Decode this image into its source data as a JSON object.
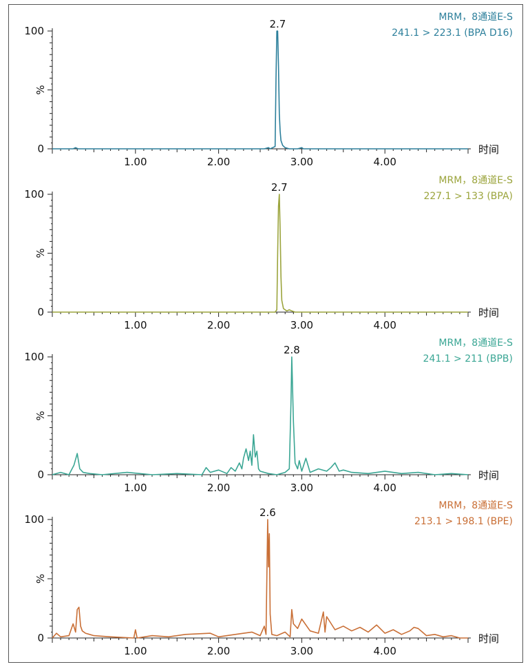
{
  "chart_data": [
    {
      "type": "line",
      "legend": [
        "MRM，8通道E-S",
        "241.1 > 223.1 (BPA D16)"
      ],
      "color": "#2c7f9b",
      "xlabel": "时间",
      "ylabel": "%",
      "xlim": [
        0,
        5
      ],
      "ylim": [
        0,
        100
      ],
      "x_ticks": [
        "1.00",
        "2.00",
        "3.00",
        "4.00"
      ],
      "y_ticks": [
        "0",
        "100"
      ],
      "peak": {
        "x": 2.71,
        "label": "2.7"
      },
      "series": [
        {
          "x": [
            0.0,
            0.25,
            0.28,
            0.31,
            2.55,
            2.6,
            2.62,
            2.65,
            2.68,
            2.69,
            2.7,
            2.71,
            2.72,
            2.73,
            2.74,
            2.75,
            2.77,
            2.8,
            2.85,
            2.95,
            3.0,
            3.02,
            3.1,
            5.0
          ],
          "y": [
            0,
            0,
            1,
            0,
            0,
            1,
            0,
            1,
            2,
            60,
            100,
            100,
            70,
            30,
            15,
            7,
            3,
            1,
            0,
            0,
            1,
            0,
            0,
            0
          ]
        }
      ]
    },
    {
      "type": "line",
      "legend": [
        "MRM，8通道E-S",
        "227.1 > 133 (BPA)"
      ],
      "color": "#9ba43c",
      "xlabel": "时间",
      "ylabel": "%",
      "xlim": [
        0,
        5
      ],
      "ylim": [
        0,
        100
      ],
      "x_ticks": [
        "1.00",
        "2.00",
        "3.00",
        "4.00"
      ],
      "y_ticks": [
        "0",
        "100"
      ],
      "peak": {
        "x": 2.73,
        "label": "2.7"
      },
      "series": [
        {
          "x": [
            0.0,
            2.6,
            2.68,
            2.7,
            2.71,
            2.72,
            2.73,
            2.74,
            2.75,
            2.76,
            2.78,
            2.82,
            2.85,
            2.88,
            2.92,
            5.0
          ],
          "y": [
            0,
            0,
            0,
            2,
            50,
            90,
            100,
            70,
            30,
            10,
            3,
            1,
            2,
            1,
            0,
            0
          ]
        }
      ]
    },
    {
      "type": "line",
      "legend": [
        "MRM，8通道E-S",
        "241.1 > 211 (BPB)"
      ],
      "color": "#3aa694",
      "xlabel": "时间",
      "ylabel": "%",
      "xlim": [
        0,
        5
      ],
      "ylim": [
        0,
        100
      ],
      "x_ticks": [
        "1.00",
        "2.00",
        "3.00",
        "4.00"
      ],
      "y_ticks": [
        "0",
        "100"
      ],
      "peak": {
        "x": 2.88,
        "label": "2.8"
      },
      "series": [
        {
          "x": [
            0.0,
            0.1,
            0.2,
            0.26,
            0.3,
            0.33,
            0.37,
            0.45,
            0.6,
            0.9,
            1.2,
            1.5,
            1.8,
            1.85,
            1.9,
            2.0,
            2.1,
            2.15,
            2.2,
            2.25,
            2.28,
            2.3,
            2.33,
            2.36,
            2.38,
            2.4,
            2.42,
            2.44,
            2.46,
            2.48,
            2.5,
            2.55,
            2.6,
            2.7,
            2.8,
            2.85,
            2.87,
            2.88,
            2.9,
            2.92,
            2.95,
            2.97,
            3.0,
            3.05,
            3.1,
            3.2,
            3.3,
            3.35,
            3.4,
            3.45,
            3.5,
            3.6,
            3.8,
            4.0,
            4.2,
            4.4,
            4.6,
            4.8,
            5.0
          ],
          "y": [
            0,
            2,
            0,
            8,
            18,
            5,
            2,
            1,
            0,
            2,
            0,
            1,
            0,
            6,
            2,
            4,
            1,
            6,
            3,
            10,
            5,
            14,
            22,
            12,
            20,
            8,
            34,
            15,
            20,
            5,
            3,
            2,
            1,
            0,
            2,
            5,
            60,
            100,
            45,
            10,
            5,
            12,
            3,
            14,
            2,
            5,
            3,
            6,
            10,
            3,
            4,
            2,
            1,
            3,
            1,
            2,
            0,
            1,
            0
          ]
        }
      ]
    },
    {
      "type": "line",
      "legend": [
        "MRM，8通道E-S",
        "213.1 > 198.1 (BPE)"
      ],
      "color": "#c96f36",
      "xlabel": "时间",
      "ylabel": "%",
      "xlim": [
        0,
        5
      ],
      "ylim": [
        0,
        100
      ],
      "x_ticks": [
        "1.00",
        "2.00",
        "3.00",
        "4.00"
      ],
      "y_ticks": [
        "0",
        "100"
      ],
      "peak": {
        "x": 2.59,
        "label": "2.6"
      },
      "series": [
        {
          "x": [
            0.0,
            0.05,
            0.1,
            0.2,
            0.25,
            0.28,
            0.3,
            0.32,
            0.34,
            0.36,
            0.4,
            0.5,
            0.7,
            0.98,
            1.0,
            1.02,
            1.2,
            1.4,
            1.6,
            1.9,
            2.0,
            2.2,
            2.4,
            2.5,
            2.55,
            2.57,
            2.59,
            2.6,
            2.61,
            2.62,
            2.64,
            2.7,
            2.8,
            2.86,
            2.88,
            2.9,
            2.95,
            3.0,
            3.1,
            3.2,
            3.26,
            3.28,
            3.3,
            3.4,
            3.5,
            3.6,
            3.7,
            3.8,
            3.9,
            4.0,
            4.1,
            4.2,
            4.3,
            4.35,
            4.4,
            4.45,
            4.5,
            4.6,
            4.7,
            4.8,
            4.9,
            5.0
          ],
          "y": [
            0,
            4,
            1,
            2,
            12,
            5,
            24,
            26,
            10,
            6,
            4,
            2,
            1,
            0,
            7,
            0,
            2,
            1,
            3,
            4,
            1,
            3,
            5,
            2,
            10,
            3,
            100,
            60,
            88,
            20,
            3,
            2,
            5,
            1,
            24,
            12,
            8,
            16,
            6,
            4,
            22,
            5,
            18,
            7,
            10,
            6,
            9,
            5,
            11,
            4,
            7,
            3,
            6,
            9,
            8,
            5,
            2,
            3,
            1,
            2,
            0,
            0
          ]
        }
      ]
    }
  ]
}
